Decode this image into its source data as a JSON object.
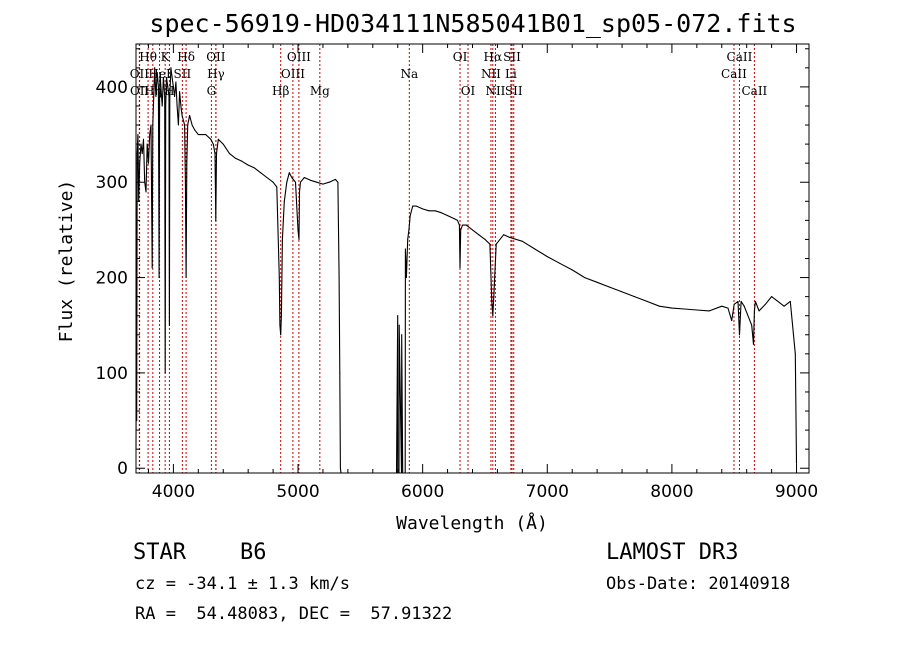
{
  "chart_data": {
    "type": "line",
    "title": "spec-56919-HD034111N585041B01_sp05-072.fits",
    "xlabel": "Wavelength (Å)",
    "ylabel": "Flux (relative)",
    "xlim": [
      3700,
      9100
    ],
    "ylim": [
      -5,
      445
    ],
    "xticks": [
      4000,
      5000,
      6000,
      7000,
      8000,
      9000
    ],
    "yticks": [
      0,
      100,
      200,
      300,
      400
    ],
    "series": [
      {
        "name": "flux",
        "x": [
          3700,
          3703,
          3706,
          3710,
          3715,
          3722,
          3730,
          3740,
          3750,
          3760,
          3770,
          3780,
          3790,
          3800,
          3810,
          3820,
          3830,
          3835,
          3840,
          3845,
          3850,
          3860,
          3870,
          3880,
          3885,
          3889,
          3893,
          3900,
          3910,
          3920,
          3930,
          3934,
          3938,
          3945,
          3955,
          3965,
          3968,
          3971,
          3980,
          3990,
          4000,
          4010,
          4020,
          4030,
          4040,
          4050,
          4060,
          4070,
          4090,
          4096,
          4102,
          4108,
          4115,
          4130,
          4150,
          4170,
          4200,
          4230,
          4260,
          4300,
          4320,
          4334,
          4340,
          4346,
          4360,
          4400,
          4450,
          4500,
          4550,
          4600,
          4650,
          4700,
          4750,
          4800,
          4830,
          4850,
          4855,
          4861,
          4867,
          4875,
          4890,
          4910,
          4930,
          4950,
          4980,
          5000,
          5008,
          5012,
          5020,
          5050,
          5100,
          5150,
          5200,
          5250,
          5300,
          5320,
          5330,
          5335,
          5340,
          5345,
          5360,
          5500,
          5790,
          5800,
          5801,
          5810,
          5812,
          5830,
          5832,
          5840,
          5842,
          5860,
          5862,
          5870,
          5880,
          5890,
          5895,
          5900,
          5920,
          5950,
          6000,
          6050,
          6100,
          6150,
          6200,
          6250,
          6280,
          6295,
          6300,
          6305,
          6320,
          6350,
          6400,
          6450,
          6500,
          6540,
          6555,
          6563,
          6571,
          6590,
          6650,
          6700,
          6800,
          6900,
          7000,
          7100,
          7200,
          7300,
          7400,
          7500,
          7600,
          7700,
          7800,
          7900,
          8000,
          8100,
          8200,
          8300,
          8400,
          8450,
          8480,
          8500,
          8530,
          8542,
          8555,
          8580,
          8640,
          8655,
          8662,
          8670,
          8700,
          8750,
          8800,
          8900,
          8950,
          8990,
          9000
        ],
        "y": [
          20,
          150,
          50,
          330,
          350,
          280,
          320,
          340,
          330,
          345,
          300,
          290,
          340,
          320,
          350,
          360,
          210,
          360,
          380,
          400,
          420,
          390,
          415,
          400,
          200,
          390,
          415,
          400,
          380,
          410,
          390,
          100,
          380,
          410,
          400,
          390,
          150,
          390,
          420,
          410,
          400,
          390,
          405,
          380,
          360,
          395,
          380,
          370,
          360,
          300,
          200,
          320,
          360,
          370,
          360,
          355,
          350,
          350,
          350,
          345,
          340,
          330,
          260,
          330,
          345,
          340,
          330,
          325,
          322,
          318,
          315,
          310,
          305,
          300,
          295,
          200,
          150,
          140,
          160,
          240,
          280,
          300,
          310,
          305,
          300,
          250,
          240,
          290,
          300,
          305,
          302,
          300,
          298,
          300,
          303,
          300,
          200,
          100,
          0,
          -10,
          -10,
          -10,
          -10,
          160,
          -10,
          -10,
          150,
          -10,
          140,
          -10,
          -10,
          -10,
          230,
          200,
          240,
          250,
          258,
          265,
          275,
          275,
          272,
          270,
          270,
          268,
          265,
          262,
          260,
          255,
          210,
          250,
          255,
          255,
          250,
          245,
          240,
          235,
          175,
          160,
          180,
          235,
          245,
          242,
          238,
          230,
          222,
          215,
          208,
          200,
          195,
          190,
          185,
          180,
          175,
          170,
          168,
          167,
          166,
          165,
          170,
          168,
          155,
          172,
          175,
          140,
          175,
          170,
          150,
          130,
          165,
          175,
          165,
          172,
          180,
          170,
          175,
          120,
          5
        ]
      }
    ],
    "lines": [
      {
        "name": "Hθ",
        "wavelength": 3797,
        "row": 1
      },
      {
        "name": "OII",
        "wavelength": 3727,
        "row": 2
      },
      {
        "name": "OII",
        "wavelength": 3729,
        "row": 3
      },
      {
        "name": "Hη",
        "wavelength": 3835,
        "row": 3
      },
      {
        "name": "HeI",
        "wavelength": 3889,
        "row": 2
      },
      {
        "name": "K",
        "wavelength": 3934,
        "row": 1
      },
      {
        "name": "SII",
        "wavelength": 4072,
        "row": 2
      },
      {
        "name": "H",
        "wavelength": 3968,
        "row": 3
      },
      {
        "name": "Hδ",
        "wavelength": 4102,
        "row": 1
      },
      {
        "name": "OII",
        "wavelength": 4341,
        "row": 1
      },
      {
        "name": "Hγ",
        "wavelength": 4341,
        "row": 2
      },
      {
        "name": "G",
        "wavelength": 4305,
        "row": 3
      },
      {
        "name": "Hβ",
        "wavelength": 4861,
        "row": 3
      },
      {
        "name": "OIII",
        "wavelength": 5007,
        "row": 1
      },
      {
        "name": "OIII",
        "wavelength": 4959,
        "row": 2
      },
      {
        "name": "Mg",
        "wavelength": 5175,
        "row": 3
      },
      {
        "name": "Na",
        "wavelength": 5893,
        "row": 2
      },
      {
        "name": "OI",
        "wavelength": 6300,
        "row": 1
      },
      {
        "name": "OI",
        "wavelength": 6364,
        "row": 3
      },
      {
        "name": "Hα",
        "wavelength": 6563,
        "row": 1
      },
      {
        "name": "SII",
        "wavelength": 6717,
        "row": 1
      },
      {
        "name": "NII",
        "wavelength": 6548,
        "row": 2
      },
      {
        "name": "Li",
        "wavelength": 6708,
        "row": 2
      },
      {
        "name": "NII",
        "wavelength": 6584,
        "row": 3
      },
      {
        "name": "SII",
        "wavelength": 6731,
        "row": 3
      },
      {
        "name": "CaII",
        "wavelength": 8542,
        "row": 1
      },
      {
        "name": "CaII",
        "wavelength": 8498,
        "row": 2
      },
      {
        "name": "CaII",
        "wavelength": 8662,
        "row": 3
      }
    ]
  },
  "info": {
    "object_class": "STAR",
    "subclass": "B6",
    "survey": "LAMOST DR3",
    "redshift": "cz = -34.1 ± 1.3 km/s",
    "obs_date": "Obs-Date: 20140918",
    "coords": "RA =  54.48083, DEC =  57.91322"
  },
  "colors": {
    "spectrum": "#000000",
    "line_marker": "#cc0000",
    "axes": "#000000"
  }
}
